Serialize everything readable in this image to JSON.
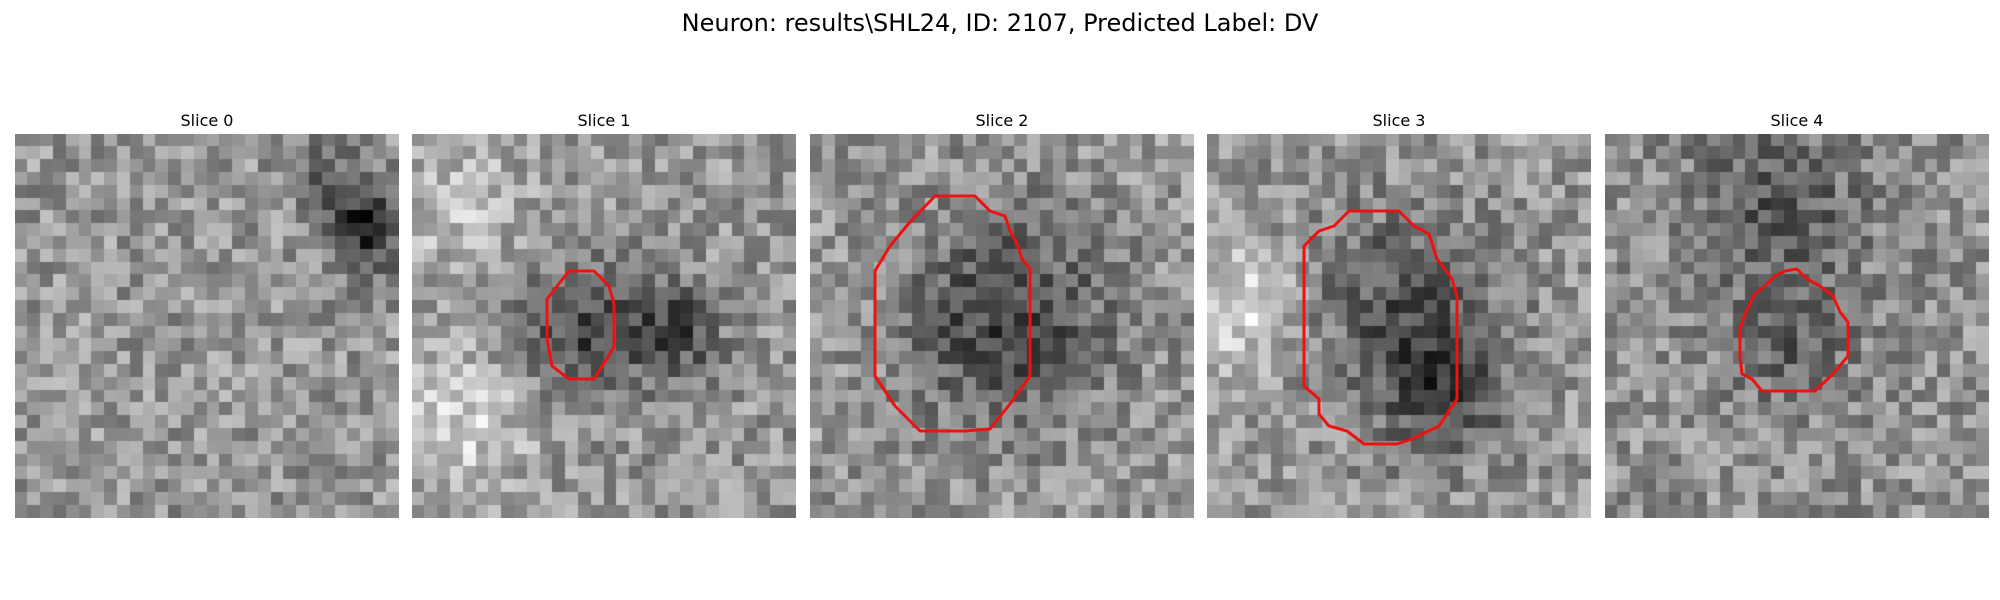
{
  "title": "Neuron: results\\SHL24, ID: 2107, Predicted Label: DV",
  "contour_color": "#ee1111",
  "panels": [
    {
      "title": "Slice 0",
      "has_contour": false
    },
    {
      "title": "Slice 1",
      "has_contour": true
    },
    {
      "title": "Slice 2",
      "has_contour": true
    },
    {
      "title": "Slice 3",
      "has_contour": true
    },
    {
      "title": "Slice 4",
      "has_contour": true
    }
  ]
}
